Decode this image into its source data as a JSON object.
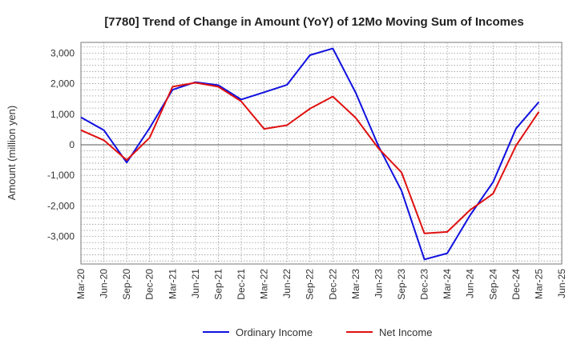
{
  "chart_data": {
    "type": "line",
    "title": "[7780]  Trend of Change in Amount (YoY) of 12Mo Moving Sum of Incomes",
    "xlabel": "",
    "ylabel": "Amount (million yen)",
    "categories": [
      "Mar-20",
      "Jun-20",
      "Sep-20",
      "Dec-20",
      "Mar-21",
      "Jun-21",
      "Sep-21",
      "Dec-21",
      "Mar-22",
      "Jun-22",
      "Sep-22",
      "Dec-22",
      "Mar-23",
      "Jun-23",
      "Sep-23",
      "Dec-23",
      "Mar-24",
      "Jun-24",
      "Sep-24",
      "Dec-24",
      "Mar-25",
      "Jun-25"
    ],
    "ylim": [
      -3900,
      3350
    ],
    "yticks": [
      -3000,
      -2000,
      -1000,
      0,
      1000,
      2000,
      3000
    ],
    "ytick_labels": [
      "-3,000",
      "-2,000",
      "-1,000",
      "0",
      "1,000",
      "2,000",
      "3,000"
    ],
    "grid": true,
    "legend_position": "bottom",
    "series": [
      {
        "name": "Ordinary Income",
        "color": "#1010e0",
        "values": [
          900,
          480,
          -580,
          550,
          1800,
          2050,
          1950,
          1480,
          1720,
          1960,
          2930,
          3150,
          1700,
          -50,
          -1500,
          -3750,
          -3550,
          -2300,
          -1220,
          530,
          1400,
          null
        ]
      },
      {
        "name": "Net Income",
        "color": "#e01010",
        "values": [
          480,
          150,
          -500,
          230,
          1900,
          2030,
          1900,
          1420,
          520,
          640,
          1180,
          1580,
          880,
          -120,
          -900,
          -2900,
          -2850,
          -2130,
          -1600,
          -30,
          1080,
          null
        ]
      }
    ]
  }
}
